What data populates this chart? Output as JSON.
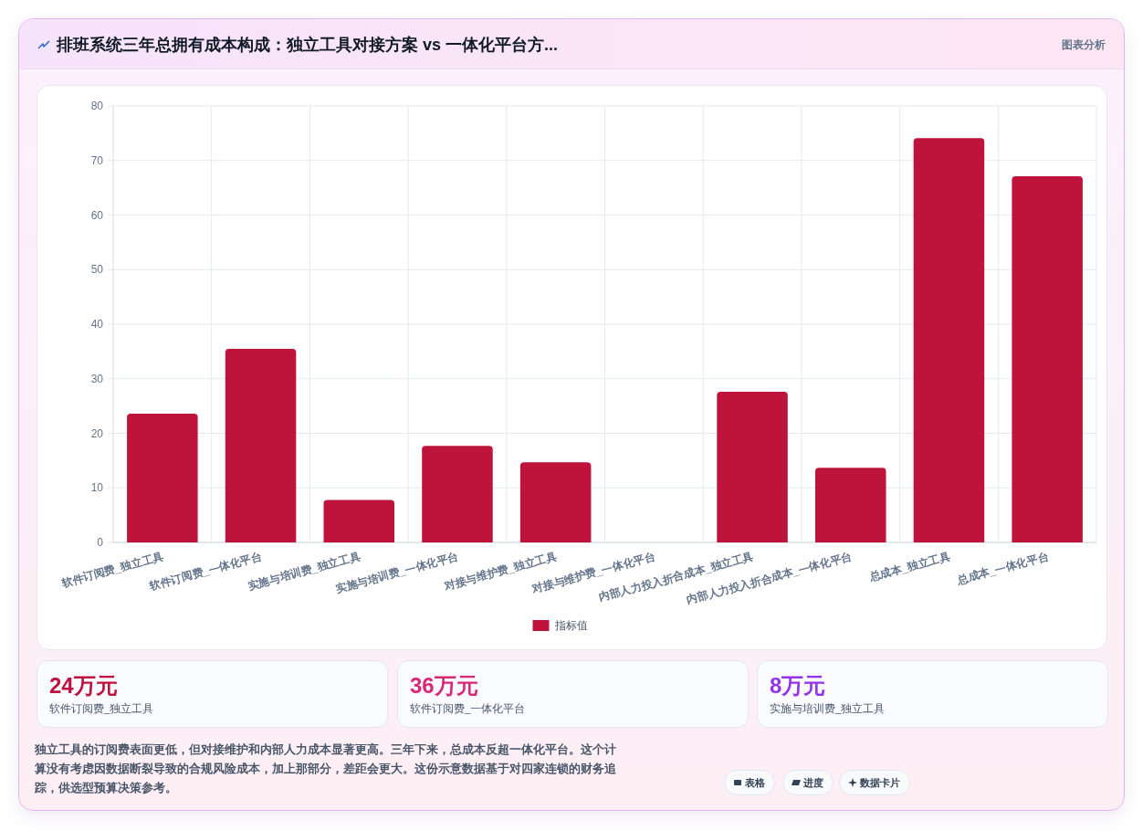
{
  "chart_data": [
    {
      "type": "bar",
      "title": "排班系统三年总拥有成本构成：独立工具对接方案 vs 一体化平台方...",
      "categories": [
        "软件订阅费_独立工具",
        "软件订阅费_一体化平台",
        "实施与培训费_独立工具",
        "实施与培训费_一体化平台",
        "对接与维护费_独立工具",
        "对接与维护费_一体化平台",
        "内部人力投入折合成本_独立工具",
        "内部人力投入折合成本_一体化平台",
        "总成本_独立工具",
        "总成本_一体化平台"
      ],
      "series": [
        {
          "name": "指标值",
          "color": "#be143c",
          "values": [
            23.6,
            35.5,
            7.8,
            17.7,
            14.7,
            0,
            27.6,
            13.7,
            74.1,
            67.1
          ]
        }
      ],
      "ylim": [
        0,
        80
      ],
      "yticks": [
        0,
        10,
        20,
        30,
        40,
        50,
        60,
        70,
        80
      ],
      "grid": true,
      "legend": "bottom",
      "annotations": [
        "图表分析",
        "独立工具的订阅费表面更低，但对接维护和内部人力成本显著更高。三年下来，总成本反超一体化平台。这个计算没有考虑因数据断裂导致的合规风险成本，加上那部分，差距会更大。这份示意数据基于对四家连锁的财务追踪，供选型预算决策参考。",
        "表格",
        "进度",
        "数据卡片"
      ]
    },
    {
      "type": "other",
      "annotations": [
        "24万元",
        "软件订阅费_独立工具"
      ],
      "color": "#be123c"
    },
    {
      "type": "other",
      "annotations": [
        "36万元",
        "软件订阅费_一体化平台"
      ],
      "color": "#db2777"
    },
    {
      "type": "other",
      "annotations": [
        "8万元",
        "实施与培训费_独立工具"
      ],
      "color": "#9333ea"
    }
  ]
}
